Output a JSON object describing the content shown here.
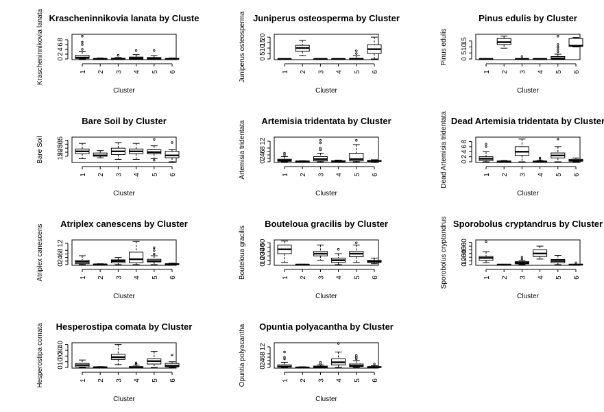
{
  "chart_data": [
    {
      "type": "boxplot",
      "title": "Krascheninnikovia lanata  by Cluste",
      "xlabel": "Cluster",
      "ylabel": "Krascheninnikovia lanata",
      "categories": [
        "1",
        "2",
        "3",
        "4",
        "5",
        "6"
      ],
      "yticks": [
        0,
        2,
        4,
        6,
        8
      ],
      "ylim": [
        0,
        10
      ],
      "boxes": [
        {
          "min": 0,
          "q1": 0.2,
          "med": 0.6,
          "q3": 1.5,
          "max": 3,
          "outliers": [
            4,
            6,
            7,
            9.5
          ]
        },
        {
          "min": 0,
          "q1": 0,
          "med": 0,
          "q3": 0.2,
          "max": 0.4,
          "outliers": []
        },
        {
          "min": 0,
          "q1": 0,
          "med": 0,
          "q3": 0.3,
          "max": 0.6,
          "outliers": [
            1.5
          ]
        },
        {
          "min": 0,
          "q1": 0,
          "med": 0.3,
          "q3": 0.8,
          "max": 1.8,
          "outliers": [
            3.5
          ]
        },
        {
          "min": 0,
          "q1": 0,
          "med": 0.2,
          "q3": 0.6,
          "max": 1.4,
          "outliers": [
            3.5
          ]
        },
        {
          "min": 0,
          "q1": 0,
          "med": 0,
          "q3": 0.2,
          "max": 0.4,
          "outliers": []
        }
      ]
    },
    {
      "type": "boxplot",
      "title": "Juniperus osteosperma by Cluster",
      "xlabel": "Cluster",
      "ylabel": "Juniperus osteosperma",
      "categories": [
        "1",
        "2",
        "3",
        "4",
        "5",
        "6"
      ],
      "yticks": [
        0,
        5,
        10,
        15,
        20
      ],
      "ylim": [
        0,
        22
      ],
      "boxes": [
        {
          "min": 0,
          "q1": 0,
          "med": 0,
          "q3": 0,
          "max": 0.3,
          "outliers": []
        },
        {
          "min": 3,
          "q1": 7,
          "med": 10,
          "q3": 12.5,
          "max": 17,
          "outliers": []
        },
        {
          "min": 0,
          "q1": 0,
          "med": 0,
          "q3": 0,
          "max": 0.3,
          "outliers": []
        },
        {
          "min": 0,
          "q1": 0,
          "med": 0,
          "q3": 0,
          "max": 0.3,
          "outliers": []
        },
        {
          "min": 0,
          "q1": 0,
          "med": 0,
          "q3": 0.5,
          "max": 3,
          "outliers": [
            5,
            7.5
          ]
        },
        {
          "min": 0,
          "q1": 5,
          "med": 9,
          "q3": 13,
          "max": 20,
          "outliers": []
        }
      ]
    },
    {
      "type": "boxplot",
      "title": "Pinus edulis  by Cluster",
      "xlabel": "Cluster",
      "ylabel": "Pinus edulis",
      "categories": [
        "1",
        "2",
        "3",
        "4",
        "5",
        "6"
      ],
      "yticks": [
        0,
        5,
        10,
        15
      ],
      "ylim": [
        0,
        20
      ],
      "boxes": [
        {
          "min": 0,
          "q1": 0,
          "med": 0,
          "q3": 0,
          "max": 0.3,
          "outliers": []
        },
        {
          "min": 9,
          "q1": 12,
          "med": 14,
          "q3": 17,
          "max": 19,
          "outliers": []
        },
        {
          "min": 0,
          "q1": 0,
          "med": 0,
          "q3": 0,
          "max": 0.3,
          "outliers": [
            2
          ]
        },
        {
          "min": 0,
          "q1": 0,
          "med": 0,
          "q3": 0,
          "max": 0.3,
          "outliers": []
        },
        {
          "min": 0,
          "q1": 0,
          "med": 0.5,
          "q3": 2,
          "max": 4,
          "outliers": [
            6,
            8,
            10,
            12,
            19
          ]
        },
        {
          "min": 10,
          "q1": 10.5,
          "med": 11,
          "q3": 17,
          "max": 18,
          "outliers": []
        }
      ]
    },
    {
      "type": "boxplot",
      "title": "Bare Soil by Cluster",
      "xlabel": "Cluster",
      "ylabel": "Bare Soil",
      "categories": [
        "1",
        "2",
        "3",
        "4",
        "5",
        "6"
      ],
      "yticks": [
        15,
        20,
        25,
        30,
        35
      ],
      "ylim": [
        8,
        38
      ],
      "boxes": [
        {
          "min": 12,
          "q1": 18,
          "med": 21,
          "q3": 24,
          "max": 31,
          "outliers": []
        },
        {
          "min": 13,
          "q1": 15,
          "med": 16,
          "q3": 19,
          "max": 22,
          "outliers": []
        },
        {
          "min": 11,
          "q1": 17,
          "med": 21,
          "q3": 25,
          "max": 32,
          "outliers": []
        },
        {
          "min": 11,
          "q1": 18,
          "med": 21,
          "q3": 24,
          "max": 31,
          "outliers": []
        },
        {
          "min": 12,
          "q1": 18,
          "med": 20,
          "q3": 23,
          "max": 28,
          "outliers": [
            10,
            36
          ]
        },
        {
          "min": 8,
          "q1": 13,
          "med": 16,
          "q3": 21,
          "max": 23,
          "outliers": [
            32
          ]
        }
      ]
    },
    {
      "type": "boxplot",
      "title": "Artemisia tridentata  by Cluster",
      "xlabel": "Cluster",
      "ylabel": "Artemisia tridentata",
      "categories": [
        "1",
        "2",
        "3",
        "4",
        "5",
        "6"
      ],
      "yticks": [
        0,
        2,
        4,
        6,
        8,
        12
      ],
      "ylim": [
        0,
        14
      ],
      "boxes": [
        {
          "min": 0,
          "q1": 0.3,
          "med": 0.8,
          "q3": 1.5,
          "max": 3,
          "outliers": [
            4,
            5
          ]
        },
        {
          "min": 0,
          "q1": 0,
          "med": 0.2,
          "q3": 0.4,
          "max": 0.6,
          "outliers": []
        },
        {
          "min": 0,
          "q1": 0.5,
          "med": 1.5,
          "q3": 3,
          "max": 5,
          "outliers": [
            7,
            8,
            11,
            12.5
          ]
        },
        {
          "min": 0,
          "q1": 0.1,
          "med": 0.3,
          "q3": 0.6,
          "max": 1,
          "outliers": []
        },
        {
          "min": 0,
          "q1": 0.5,
          "med": 1.5,
          "q3": 5,
          "max": 10,
          "outliers": [
            12.5
          ]
        },
        {
          "min": 0,
          "q1": 0.2,
          "med": 0.5,
          "q3": 0.8,
          "max": 1.2,
          "outliers": []
        }
      ]
    },
    {
      "type": "boxplot",
      "title": "Dead Artemisia tridentata  by Cluster",
      "xlabel": "Cluster",
      "ylabel": "Dead Artemisia tridentata",
      "categories": [
        "1",
        "2",
        "3",
        "4",
        "5",
        "6"
      ],
      "yticks": [
        0,
        2,
        4,
        6,
        8
      ],
      "ylim": [
        0,
        9.5
      ],
      "boxes": [
        {
          "min": 0,
          "q1": 0.5,
          "med": 1.2,
          "q3": 2,
          "max": 4,
          "outliers": [
            6,
            7
          ]
        },
        {
          "min": 0,
          "q1": 0,
          "med": 0.1,
          "q3": 0.3,
          "max": 0.5,
          "outliers": []
        },
        {
          "min": 0,
          "q1": 2.5,
          "med": 4,
          "q3": 6,
          "max": 9,
          "outliers": []
        },
        {
          "min": 0,
          "q1": 0,
          "med": 0.1,
          "q3": 0.3,
          "max": 0.5,
          "outliers": [
            1,
            1.5
          ]
        },
        {
          "min": 0,
          "q1": 1.5,
          "med": 2.5,
          "q3": 3.5,
          "max": 6,
          "outliers": [
            9
          ]
        },
        {
          "min": 0,
          "q1": 0.2,
          "med": 0.5,
          "q3": 1,
          "max": 1.5,
          "outliers": []
        }
      ]
    },
    {
      "type": "boxplot",
      "title": "Atriplex canescens by Cluster",
      "xlabel": "Cluster",
      "ylabel": "Atriplex canescens",
      "categories": [
        "1",
        "2",
        "3",
        "4",
        "5",
        "6"
      ],
      "yticks": [
        0,
        2,
        4,
        6,
        8,
        12
      ],
      "ylim": [
        0,
        13.5
      ],
      "boxes": [
        {
          "min": 0,
          "q1": 0.5,
          "med": 1.5,
          "q3": 2.5,
          "max": 5,
          "outliers": []
        },
        {
          "min": 0,
          "q1": 0,
          "med": 0.1,
          "q3": 0.3,
          "max": 0.5,
          "outliers": []
        },
        {
          "min": 0,
          "q1": 1,
          "med": 2,
          "q3": 2.7,
          "max": 4,
          "outliers": []
        },
        {
          "min": 0,
          "q1": 1,
          "med": 3,
          "q3": 7,
          "max": 13,
          "outliers": []
        },
        {
          "min": 0,
          "q1": 1.5,
          "med": 2,
          "q3": 3,
          "max": 5,
          "outliers": [
            6,
            8,
            9.5
          ]
        },
        {
          "min": 0,
          "q1": 0,
          "med": 0.2,
          "q3": 0.5,
          "max": 0.8,
          "outliers": []
        }
      ]
    },
    {
      "type": "boxplot",
      "title": "Bouteloua gracilis by Cluster",
      "xlabel": "Cluster",
      "ylabel": "Bouteloua gracilis",
      "categories": [
        "1",
        "2",
        "3",
        "4",
        "5",
        "6"
      ],
      "yticks": [
        0,
        10,
        20,
        30,
        40,
        50
      ],
      "ylim": [
        0,
        55
      ],
      "boxes": [
        {
          "min": 5,
          "q1": 25,
          "med": 35,
          "q3": 45,
          "max": 54,
          "outliers": []
        },
        {
          "min": 0,
          "q1": 0,
          "med": 0,
          "q3": 0.5,
          "max": 1,
          "outliers": []
        },
        {
          "min": 10,
          "q1": 20,
          "med": 25,
          "q3": 30,
          "max": 45,
          "outliers": []
        },
        {
          "min": 0,
          "q1": 5,
          "med": 10,
          "q3": 15,
          "max": 25,
          "outliers": [
            35
          ]
        },
        {
          "min": 5,
          "q1": 18,
          "med": 25,
          "q3": 30,
          "max": 45,
          "outliers": [
            50
          ]
        },
        {
          "min": 2,
          "q1": 5,
          "med": 7,
          "q3": 10,
          "max": 15,
          "outliers": []
        }
      ]
    },
    {
      "type": "boxplot",
      "title": "Sporobolus cryptandrus by Cluster",
      "xlabel": "Cluster",
      "ylabel": "Sporobolus cryptandrus",
      "categories": [
        "1",
        "2",
        "3",
        "4",
        "5",
        "6"
      ],
      "yticks": [
        0,
        10,
        20,
        30,
        40,
        50,
        60
      ],
      "ylim": [
        0,
        65
      ],
      "boxes": [
        {
          "min": 5,
          "q1": 12,
          "med": 18,
          "q3": 22,
          "max": 35,
          "outliers": [
            62
          ]
        },
        {
          "min": 0,
          "q1": 0,
          "med": 0,
          "q3": 0.5,
          "max": 1,
          "outliers": []
        },
        {
          "min": 0,
          "q1": 2,
          "med": 5,
          "q3": 8,
          "max": 12,
          "outliers": [
            15,
            20
          ]
        },
        {
          "min": 15,
          "q1": 22,
          "med": 30,
          "q3": 40,
          "max": 50,
          "outliers": []
        },
        {
          "min": 0,
          "q1": 5,
          "med": 10,
          "q3": 14,
          "max": 25,
          "outliers": []
        },
        {
          "min": 0,
          "q1": 0,
          "med": 0,
          "q3": 0.5,
          "max": 1,
          "outliers": [
            5
          ]
        }
      ]
    },
    {
      "type": "boxplot",
      "title": "Hesperostipa comata by Cluster",
      "xlabel": "Cluster",
      "ylabel": "Hesperostipa comata",
      "categories": [
        "1",
        "2",
        "3",
        "4",
        "5",
        "6"
      ],
      "yticks": [
        0,
        10,
        20,
        30,
        40
      ],
      "ylim": [
        0,
        42
      ],
      "boxes": [
        {
          "min": 0,
          "q1": 1,
          "med": 4,
          "q3": 7,
          "max": 13,
          "outliers": []
        },
        {
          "min": 0,
          "q1": 0,
          "med": 0.3,
          "q3": 0.8,
          "max": 1.5,
          "outliers": []
        },
        {
          "min": 5,
          "q1": 14,
          "med": 18,
          "q3": 23,
          "max": 40,
          "outliers": []
        },
        {
          "min": 0,
          "q1": 0,
          "med": 0.5,
          "q3": 1.5,
          "max": 4,
          "outliers": [
            6,
            8
          ]
        },
        {
          "min": 0,
          "q1": 6,
          "med": 11,
          "q3": 15,
          "max": 28,
          "outliers": []
        },
        {
          "min": 0,
          "q1": 1,
          "med": 3,
          "q3": 7,
          "max": 10,
          "outliers": [
            22
          ]
        }
      ]
    },
    {
      "type": "boxplot",
      "title": "Opuntia polyacantha  by Cluster",
      "xlabel": "Cluster",
      "ylabel": "Opuntia polyacantha",
      "categories": [
        "1",
        "2",
        "3",
        "4",
        "5",
        "6"
      ],
      "yticks": [
        0,
        2,
        4,
        6,
        8,
        12
      ],
      "ylim": [
        0,
        14
      ],
      "boxes": [
        {
          "min": 0,
          "q1": 0.2,
          "med": 0.5,
          "q3": 1.5,
          "max": 3,
          "outliers": [
            5,
            6,
            9
          ]
        },
        {
          "min": 0,
          "q1": 0,
          "med": 0,
          "q3": 0.2,
          "max": 0.4,
          "outliers": []
        },
        {
          "min": 0,
          "q1": 0.1,
          "med": 0.3,
          "q3": 0.8,
          "max": 1.5,
          "outliers": [
            2,
            3
          ]
        },
        {
          "min": 0,
          "q1": 1.5,
          "med": 3,
          "q3": 5,
          "max": 9,
          "outliers": [
            14
          ]
        },
        {
          "min": 0,
          "q1": 0.5,
          "med": 1,
          "q3": 2,
          "max": 4,
          "outliers": [
            5,
            6,
            7
          ]
        },
        {
          "min": 0,
          "q1": 0,
          "med": 0.2,
          "q3": 0.5,
          "max": 1,
          "outliers": [
            2
          ]
        }
      ]
    }
  ]
}
